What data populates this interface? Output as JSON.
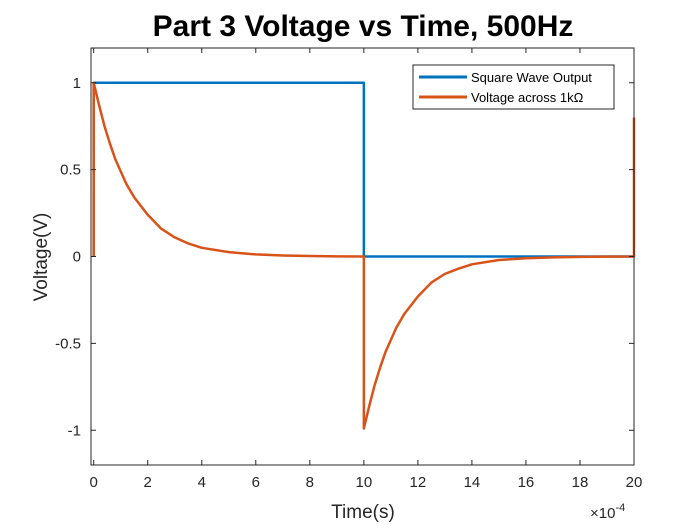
{
  "chart_data": {
    "type": "line",
    "title": "Part 3 Voltage vs Time, 500Hz",
    "xlabel": "Time(s)",
    "ylabel": "Voltage(V)",
    "x_exponent_label": "×10",
    "x_exponent_power": "-4",
    "xlim": [
      -1e-05,
      0.002
    ],
    "ylim": [
      -1.2,
      1.2
    ],
    "x_ticks": [
      0,
      0.0002,
      0.0004,
      0.0006,
      0.0008,
      0.001,
      0.0012,
      0.0014,
      0.0016,
      0.0018,
      0.002
    ],
    "x_tick_labels": [
      "0",
      "2",
      "4",
      "6",
      "8",
      "10",
      "12",
      "14",
      "16",
      "18",
      "20"
    ],
    "y_ticks": [
      -1,
      -0.5,
      0,
      0.5,
      1
    ],
    "y_tick_labels": [
      "-1",
      "-0.5",
      "0",
      "0.5",
      "1"
    ],
    "grid": false,
    "legend_position": "top-right",
    "series": [
      {
        "name": "Square Wave Output",
        "color": "#0072BD",
        "x": [
          0,
          0,
          0.001,
          0.001,
          0.002
        ],
        "y": [
          0,
          1,
          1,
          0,
          0
        ]
      },
      {
        "name": "Voltage across 1kΩ",
        "color": "#D95319",
        "x": [
          0,
          0,
          2e-05,
          4e-05,
          6e-05,
          8e-05,
          0.0001,
          0.00012,
          0.00015,
          0.0002,
          0.00025,
          0.0003,
          0.00035,
          0.0004,
          0.0005,
          0.0006,
          0.0007,
          0.0008,
          0.0009,
          0.001,
          0.001,
          0.00102,
          0.00104,
          0.00106,
          0.00108,
          0.0011,
          0.00112,
          0.00115,
          0.0012,
          0.00125,
          0.0013,
          0.00135,
          0.0014,
          0.0015,
          0.0016,
          0.0017,
          0.0018,
          0.0019,
          0.002,
          0.002
        ],
        "y": [
          0,
          1,
          0.87,
          0.75,
          0.65,
          0.56,
          0.49,
          0.42,
          0.34,
          0.24,
          0.16,
          0.11,
          0.075,
          0.05,
          0.025,
          0.012,
          0.006,
          0.003,
          0.001,
          0,
          -0.99,
          -0.86,
          -0.74,
          -0.64,
          -0.55,
          -0.48,
          -0.41,
          -0.33,
          -0.23,
          -0.15,
          -0.1,
          -0.07,
          -0.045,
          -0.02,
          -0.01,
          -0.005,
          -0.002,
          -0.001,
          0,
          0.8
        ]
      }
    ]
  }
}
